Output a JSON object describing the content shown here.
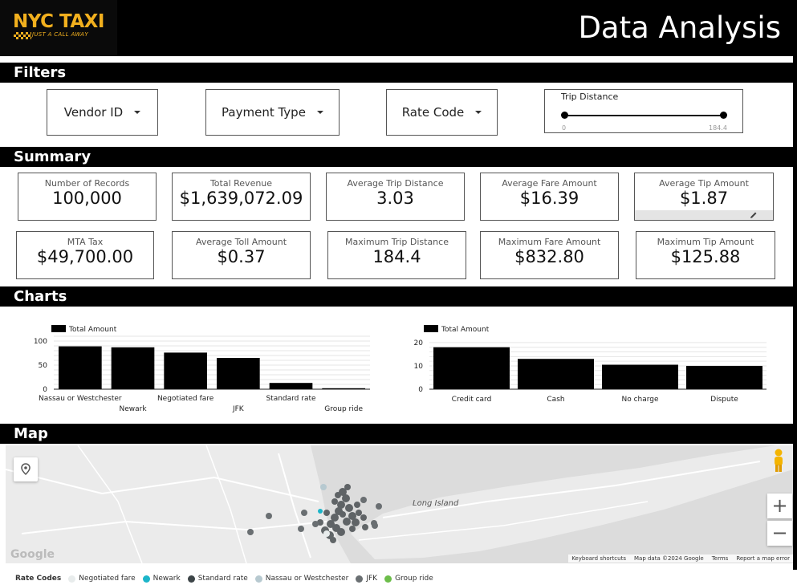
{
  "header": {
    "logo_text": "NYC TAXI",
    "logo_tagline": "JUST A CALL AWAY",
    "title": "Data Analysis"
  },
  "sections": {
    "filters": "Filters",
    "summary": "Summary",
    "charts": "Charts",
    "map": "Map"
  },
  "filters": {
    "vendor": "Vendor ID",
    "payment": "Payment Type",
    "rate": "Rate Code",
    "slider": {
      "label": "Trip Distance",
      "min_label": "0",
      "max_label": "184.4",
      "min": 0,
      "max": 184.4
    }
  },
  "summary": {
    "cards": [
      {
        "label": "Number of Records",
        "value": "100,000"
      },
      {
        "label": "Total Revenue",
        "value": "$1,639,072.09"
      },
      {
        "label": "Average Trip Distance",
        "value": "3.03"
      },
      {
        "label": "Average Fare Amount",
        "value": "$16.39"
      },
      {
        "label": "Average Tip Amount",
        "value": "$1.87"
      },
      {
        "label": "MTA Tax",
        "value": "$49,700.00"
      },
      {
        "label": "Average Toll Amount",
        "value": "$0.37"
      },
      {
        "label": "Maximum Trip Distance",
        "value": "184.4"
      },
      {
        "label": "Maximum Fare Amount",
        "value": "$832.80"
      },
      {
        "label": "Maximum Tip Amount",
        "value": "$125.88"
      }
    ]
  },
  "chart_data": [
    {
      "type": "bar",
      "categories": [
        "Nassau or Westchester",
        "Newark",
        "Negotiated fare",
        "JFK",
        "Standard rate",
        "Group ride"
      ],
      "series": [
        {
          "name": "Total Amount",
          "values": [
            89,
            87,
            76,
            65,
            13,
            2
          ]
        }
      ],
      "yticks": [
        0,
        50,
        100
      ],
      "ylim": [
        0,
        110
      ],
      "legend": "top-left",
      "grid": true,
      "color": "#000000"
    },
    {
      "type": "bar",
      "categories": [
        "Credit card",
        "Cash",
        "No charge",
        "Dispute"
      ],
      "series": [
        {
          "name": "Total Amount",
          "values": [
            18,
            13,
            10.5,
            10
          ]
        }
      ],
      "yticks": [
        0,
        10,
        20
      ],
      "ylim": [
        0,
        21
      ],
      "legend": "top-left",
      "grid": true,
      "color": "#000000"
    }
  ],
  "map": {
    "place_label": "Long Island",
    "attribution": [
      "Keyboard shortcuts",
      "Map data ©2024 Google",
      "Terms",
      "Report a map error"
    ],
    "logo": "Google",
    "zoom_in": "+",
    "zoom_out": "−",
    "legend_title": "Rate Codes",
    "legend": [
      {
        "label": "Negotiated fare",
        "color": "#e8ecec"
      },
      {
        "label": "Newark",
        "color": "#1cb5c9"
      },
      {
        "label": "Standard rate",
        "color": "#3d4548"
      },
      {
        "label": "Nassau or Westchester",
        "color": "#b7c9d0"
      },
      {
        "label": "JFK",
        "color": "#6a6f72"
      },
      {
        "label": "Group ride",
        "color": "#6cbd4a"
      }
    ]
  }
}
